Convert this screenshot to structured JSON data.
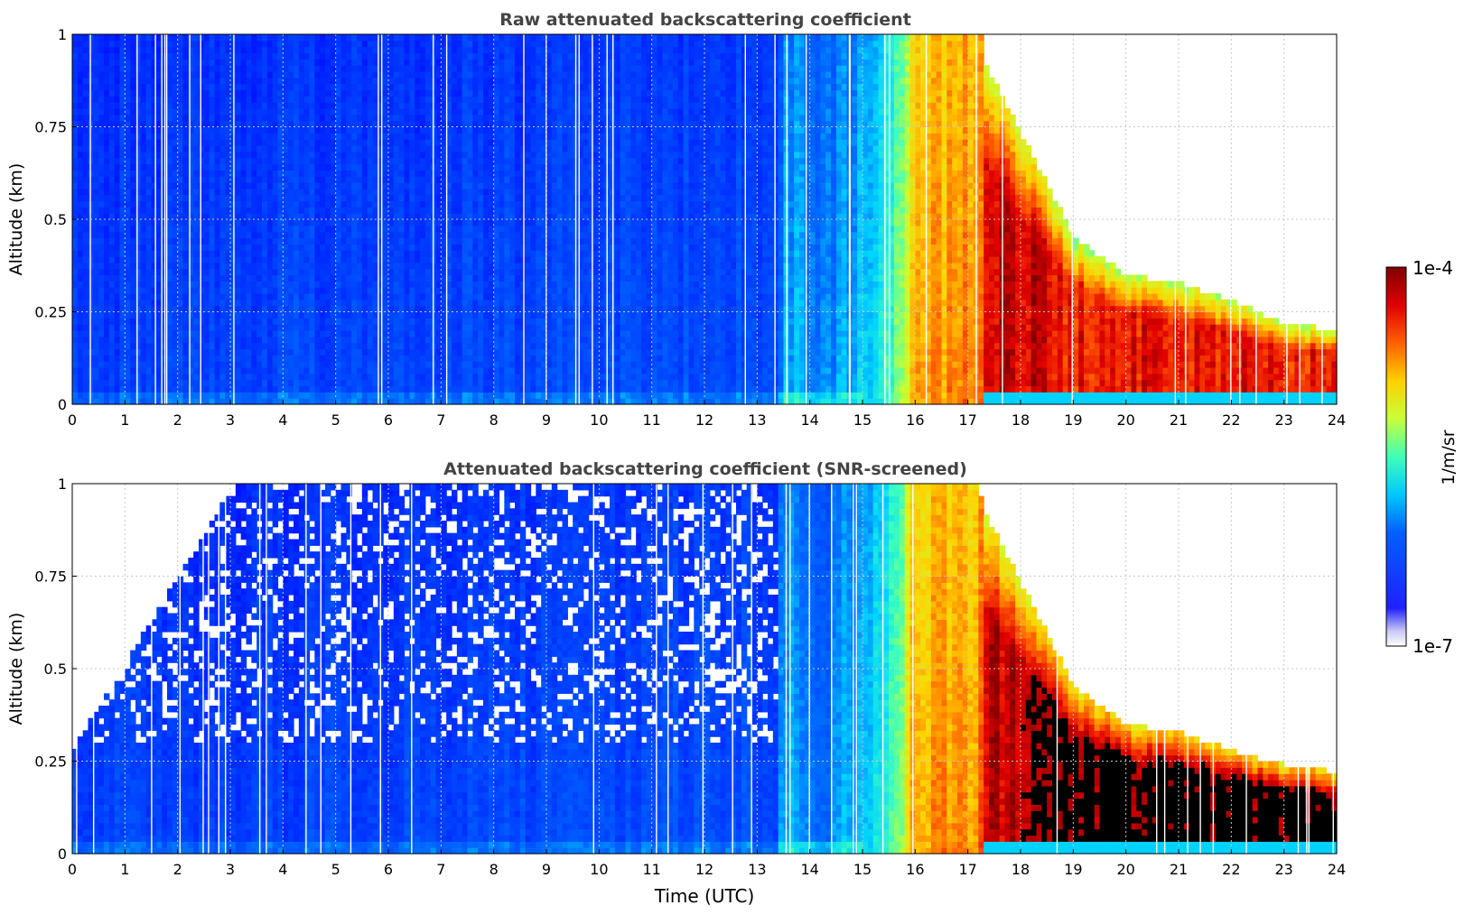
{
  "colors": {
    "axis": "#000000",
    "title": "#444444",
    "grid": "#c8c8c8",
    "low_clip": "#e8e8f8",
    "high_clip": "#000000"
  },
  "colorbar": {
    "label": "1/m/sr",
    "max_label": "1e-4",
    "min_label": "1e-7",
    "colormap": "jet"
  },
  "chart_data": [
    {
      "type": "heatmap",
      "title": "Raw attenuated backscattering coefficient",
      "xlabel": "",
      "ylabel": "Altitude (km)",
      "xlim": [
        0,
        24
      ],
      "ylim": [
        0,
        1
      ],
      "xticks": [
        "0",
        "1",
        "2",
        "3",
        "4",
        "5",
        "6",
        "7",
        "8",
        "9",
        "10",
        "11",
        "12",
        "13",
        "14",
        "15",
        "16",
        "17",
        "18",
        "19",
        "20",
        "21",
        "22",
        "23",
        "24"
      ],
      "yticks": [
        "0",
        "0.25",
        "0.5",
        "0.75",
        "1"
      ],
      "grid": true,
      "color_scale": "log",
      "value_range": [
        "1e-7",
        "1e-4"
      ],
      "screened": false,
      "profile": [
        {
          "t": 0,
          "level": 0.25,
          "top": 1.0
        },
        {
          "t": 13.4,
          "level": 0.28,
          "top": 1.0
        },
        {
          "t": 13.5,
          "level": 0.45,
          "top": 1.0
        },
        {
          "t": 14.2,
          "level": 0.35,
          "top": 1.0
        },
        {
          "t": 15.0,
          "level": 0.45,
          "top": 1.0
        },
        {
          "t": 15.6,
          "level": 0.55,
          "top": 1.0
        },
        {
          "t": 16.0,
          "level": 0.8,
          "top": 1.0
        },
        {
          "t": 17.2,
          "level": 0.82,
          "top": 1.0
        },
        {
          "t": 17.4,
          "level": 0.95,
          "top": 0.9
        },
        {
          "t": 18.5,
          "level": 0.95,
          "top": 0.6
        },
        {
          "t": 19.0,
          "level": 0.9,
          "top": 0.45
        },
        {
          "t": 20.0,
          "level": 0.92,
          "top": 0.35
        },
        {
          "t": 21.0,
          "level": 0.9,
          "top": 0.33
        },
        {
          "t": 22.0,
          "level": 0.92,
          "top": 0.28
        },
        {
          "t": 23.0,
          "level": 0.9,
          "top": 0.22
        },
        {
          "t": 24.0,
          "level": 0.9,
          "top": 0.2
        }
      ]
    },
    {
      "type": "heatmap",
      "title": "Attenuated backscattering coefficient (SNR-screened)",
      "xlabel": "Time (UTC)",
      "ylabel": "Altitude (km)",
      "xlim": [
        0,
        24
      ],
      "ylim": [
        0,
        1
      ],
      "xticks": [
        "0",
        "1",
        "2",
        "3",
        "4",
        "5",
        "6",
        "7",
        "8",
        "9",
        "10",
        "11",
        "12",
        "13",
        "14",
        "15",
        "16",
        "17",
        "18",
        "19",
        "20",
        "21",
        "22",
        "23",
        "24"
      ],
      "yticks": [
        "0",
        "0.25",
        "0.5",
        "0.75",
        "1"
      ],
      "grid": true,
      "color_scale": "log",
      "value_range": [
        "1e-7",
        "1e-4"
      ],
      "screened": true,
      "profile": [
        {
          "t": 0,
          "level": 0.25,
          "top": 0.28
        },
        {
          "t": 3.1,
          "level": 0.25,
          "top": 1.0
        },
        {
          "t": 13.4,
          "level": 0.28,
          "top": 1.0
        },
        {
          "t": 13.5,
          "level": 0.45,
          "top": 1.0
        },
        {
          "t": 14.2,
          "level": 0.35,
          "top": 1.0
        },
        {
          "t": 15.0,
          "level": 0.45,
          "top": 1.0
        },
        {
          "t": 15.6,
          "level": 0.55,
          "top": 1.0
        },
        {
          "t": 16.0,
          "level": 0.8,
          "top": 1.0
        },
        {
          "t": 17.2,
          "level": 0.82,
          "top": 1.0
        },
        {
          "t": 17.4,
          "level": 0.95,
          "top": 0.9
        },
        {
          "t": 18.5,
          "level": 1.0,
          "top": 0.6
        },
        {
          "t": 19.0,
          "level": 1.0,
          "top": 0.45
        },
        {
          "t": 20.0,
          "level": 1.0,
          "top": 0.35
        },
        {
          "t": 21.0,
          "level": 1.0,
          "top": 0.33
        },
        {
          "t": 22.0,
          "level": 1.0,
          "top": 0.28
        },
        {
          "t": 23.0,
          "level": 1.0,
          "top": 0.24
        },
        {
          "t": 24.0,
          "level": 1.0,
          "top": 0.22
        }
      ]
    }
  ]
}
